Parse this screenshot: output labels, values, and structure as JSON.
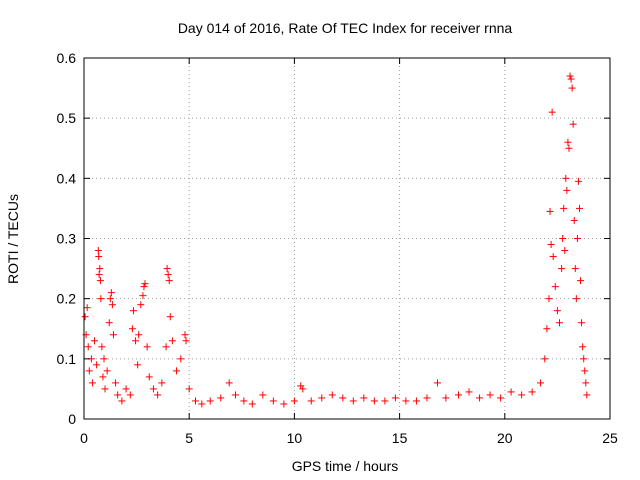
{
  "chart_data": {
    "type": "scatter",
    "title": "Day 014 of 2016, Rate Of TEC Index for receiver rnna",
    "xlabel": "GPS time / hours",
    "ylabel": "ROTI / TECUs",
    "xlim": [
      0,
      25
    ],
    "ylim": [
      0,
      0.6
    ],
    "xticks": [
      "0",
      "5",
      "10",
      "15",
      "20",
      "25"
    ],
    "yticks": [
      "0",
      "0.1",
      "0.2",
      "0.3",
      "0.4",
      "0.5",
      "0.6"
    ],
    "grid": true,
    "legend": "none",
    "marker": "+",
    "color": "#ff0000",
    "series": [
      {
        "values": [
          [
            0.05,
            0.17
          ],
          [
            0.1,
            0.14
          ],
          [
            0.15,
            0.185
          ],
          [
            0.2,
            0.12
          ],
          [
            0.25,
            0.08
          ],
          [
            0.35,
            0.1
          ],
          [
            0.4,
            0.06
          ],
          [
            0.5,
            0.13
          ],
          [
            0.6,
            0.09
          ],
          [
            0.68,
            0.28
          ],
          [
            0.7,
            0.27
          ],
          [
            0.72,
            0.24
          ],
          [
            0.75,
            0.25
          ],
          [
            0.78,
            0.23
          ],
          [
            0.8,
            0.2
          ],
          [
            0.85,
            0.12
          ],
          [
            0.9,
            0.07
          ],
          [
            0.95,
            0.1
          ],
          [
            1.0,
            0.05
          ],
          [
            1.1,
            0.08
          ],
          [
            1.2,
            0.16
          ],
          [
            1.25,
            0.2
          ],
          [
            1.3,
            0.21
          ],
          [
            1.35,
            0.19
          ],
          [
            1.4,
            0.14
          ],
          [
            1.5,
            0.06
          ],
          [
            1.6,
            0.04
          ],
          [
            1.8,
            0.03
          ],
          [
            2.0,
            0.05
          ],
          [
            2.2,
            0.04
          ],
          [
            2.3,
            0.15
          ],
          [
            2.35,
            0.18
          ],
          [
            2.45,
            0.13
          ],
          [
            2.55,
            0.09
          ],
          [
            2.6,
            0.14
          ],
          [
            2.7,
            0.19
          ],
          [
            2.8,
            0.205
          ],
          [
            2.85,
            0.22
          ],
          [
            2.9,
            0.225
          ],
          [
            3.0,
            0.12
          ],
          [
            3.1,
            0.07
          ],
          [
            3.3,
            0.05
          ],
          [
            3.5,
            0.04
          ],
          [
            3.7,
            0.06
          ],
          [
            3.9,
            0.12
          ],
          [
            3.95,
            0.25
          ],
          [
            4.0,
            0.24
          ],
          [
            4.05,
            0.23
          ],
          [
            4.1,
            0.17
          ],
          [
            4.2,
            0.13
          ],
          [
            4.4,
            0.08
          ],
          [
            4.6,
            0.1
          ],
          [
            4.8,
            0.14
          ],
          [
            4.85,
            0.13
          ],
          [
            5.0,
            0.05
          ],
          [
            5.3,
            0.03
          ],
          [
            5.6,
            0.025
          ],
          [
            6.0,
            0.03
          ],
          [
            6.5,
            0.035
          ],
          [
            6.9,
            0.06
          ],
          [
            7.2,
            0.04
          ],
          [
            7.6,
            0.03
          ],
          [
            8.0,
            0.025
          ],
          [
            8.5,
            0.04
          ],
          [
            9.0,
            0.03
          ],
          [
            9.5,
            0.025
          ],
          [
            10.0,
            0.03
          ],
          [
            10.3,
            0.055
          ],
          [
            10.4,
            0.05
          ],
          [
            10.8,
            0.03
          ],
          [
            11.3,
            0.035
          ],
          [
            11.8,
            0.04
          ],
          [
            12.3,
            0.035
          ],
          [
            12.8,
            0.03
          ],
          [
            13.3,
            0.035
          ],
          [
            13.8,
            0.03
          ],
          [
            14.3,
            0.03
          ],
          [
            14.8,
            0.035
          ],
          [
            15.3,
            0.03
          ],
          [
            15.8,
            0.03
          ],
          [
            16.3,
            0.035
          ],
          [
            16.8,
            0.06
          ],
          [
            17.2,
            0.035
          ],
          [
            17.8,
            0.04
          ],
          [
            18.3,
            0.045
          ],
          [
            18.8,
            0.035
          ],
          [
            19.3,
            0.04
          ],
          [
            19.8,
            0.035
          ],
          [
            20.3,
            0.045
          ],
          [
            20.8,
            0.04
          ],
          [
            21.3,
            0.045
          ],
          [
            21.7,
            0.06
          ],
          [
            21.9,
            0.1
          ],
          [
            22.0,
            0.15
          ],
          [
            22.1,
            0.2
          ],
          [
            22.15,
            0.345
          ],
          [
            22.2,
            0.29
          ],
          [
            22.25,
            0.51
          ],
          [
            22.3,
            0.27
          ],
          [
            22.4,
            0.22
          ],
          [
            22.5,
            0.18
          ],
          [
            22.6,
            0.16
          ],
          [
            22.7,
            0.25
          ],
          [
            22.75,
            0.3
          ],
          [
            22.8,
            0.35
          ],
          [
            22.85,
            0.28
          ],
          [
            22.9,
            0.4
          ],
          [
            22.95,
            0.38
          ],
          [
            23.0,
            0.46
          ],
          [
            23.05,
            0.45
          ],
          [
            23.1,
            0.57
          ],
          [
            23.15,
            0.565
          ],
          [
            23.2,
            0.55
          ],
          [
            23.25,
            0.49
          ],
          [
            23.3,
            0.33
          ],
          [
            23.35,
            0.25
          ],
          [
            23.4,
            0.2
          ],
          [
            23.45,
            0.3
          ],
          [
            23.5,
            0.395
          ],
          [
            23.55,
            0.35
          ],
          [
            23.6,
            0.23
          ],
          [
            23.65,
            0.16
          ],
          [
            23.7,
            0.12
          ],
          [
            23.75,
            0.1
          ],
          [
            23.8,
            0.08
          ],
          [
            23.85,
            0.06
          ],
          [
            23.9,
            0.04
          ]
        ]
      }
    ]
  }
}
